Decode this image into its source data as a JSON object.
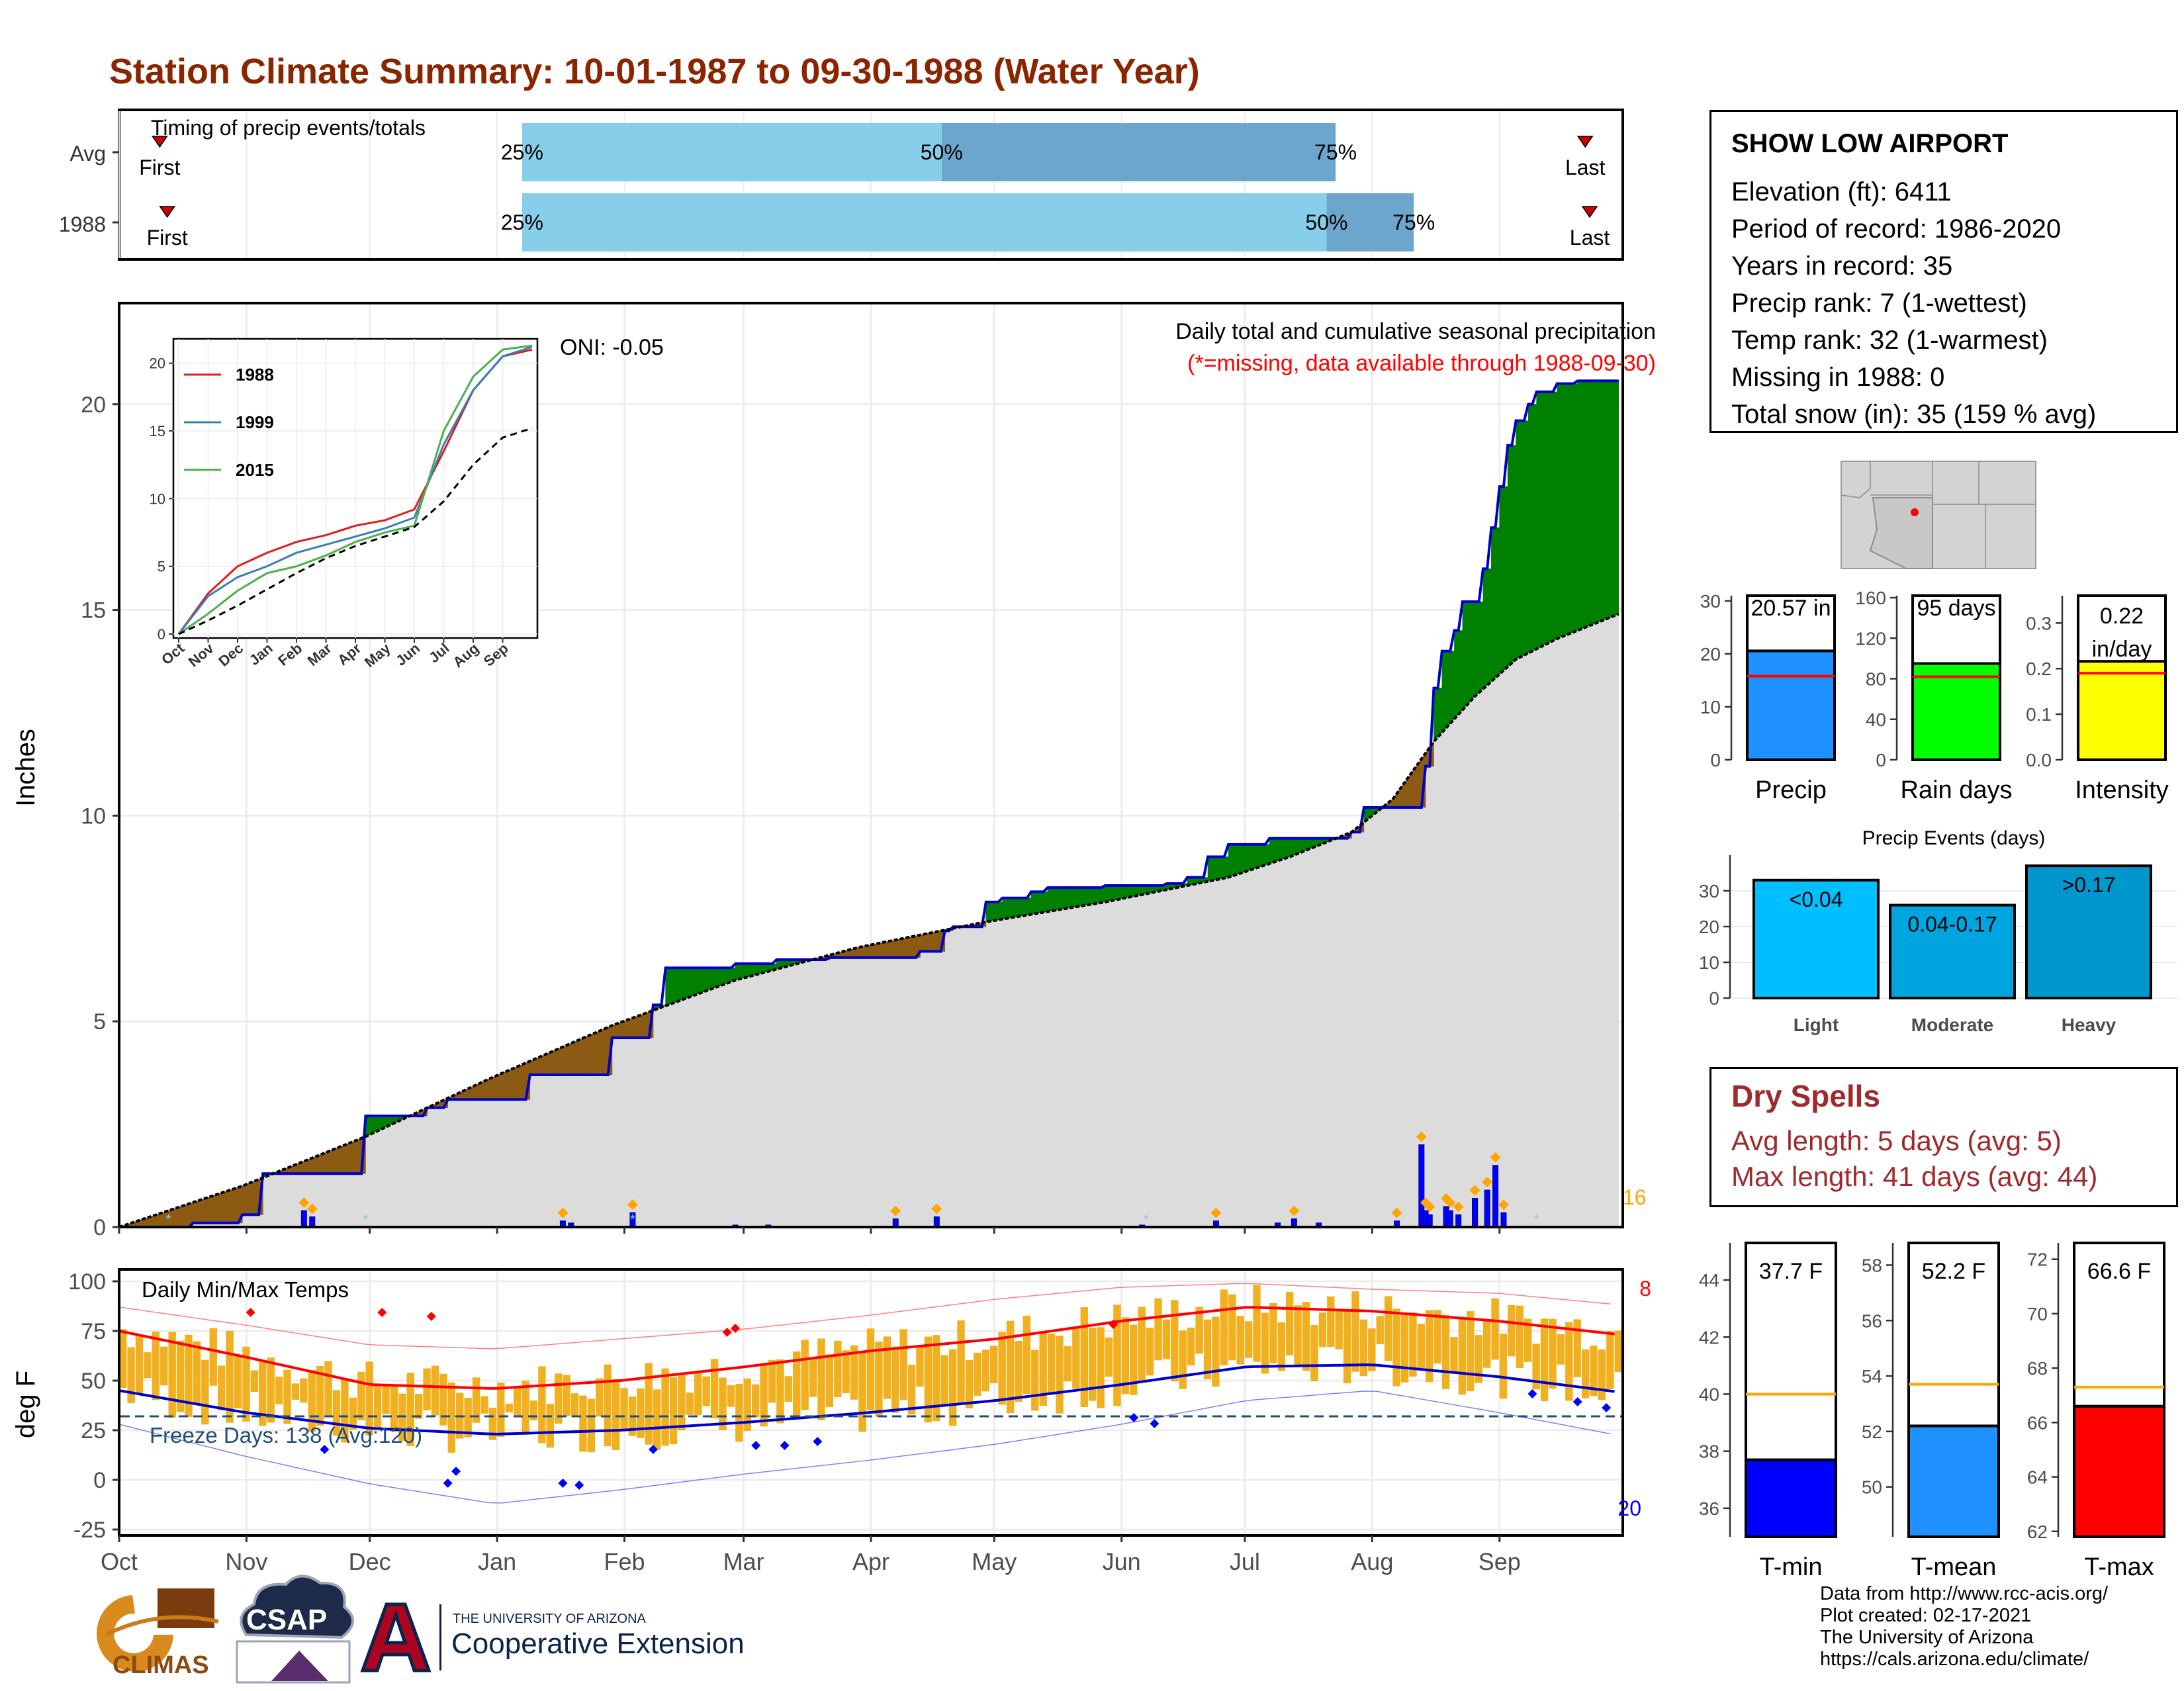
{
  "header": {
    "title": "Station Climate Summary: 10-01-1987 to 09-30-1988 (Water Year)",
    "title_color": "#8b2500"
  },
  "station": {
    "name": "SHOW LOW AIRPORT",
    "lines": [
      "Elevation (ft): 6411",
      "Period of record: 1986-2020",
      "Years in record: 35",
      "Precip rank: 7 (1-wettest)",
      "Temp rank: 32 (1-warmest)",
      "Missing in 1988: 0",
      "Total snow (in): 35 (159 % avg)"
    ]
  },
  "timing": {
    "title": "Timing of precip events/totals",
    "rows": [
      {
        "label": "Avg",
        "first_label": "First",
        "last_label": "Last",
        "first_frac": 0.027,
        "last_frac": 0.975,
        "q25": 0.268,
        "q50": 0.547,
        "q75": 0.809,
        "q25_label": "25%",
        "q50_label": "50%",
        "q75_label": "75%"
      },
      {
        "label": "1988",
        "first_label": "First",
        "last_label": "Last",
        "first_frac": 0.032,
        "last_frac": 0.978,
        "q25": 0.268,
        "q50": 0.803,
        "q75": 0.861,
        "q25_label": "25%",
        "q50_label": "50%",
        "q75_label": "75%"
      }
    ],
    "colors": {
      "light": "#87ceeb",
      "dark": "#6ca6cd",
      "marker": "#cc0000"
    }
  },
  "precip_panel": {
    "ylabel": "Inches",
    "yticks": [
      0,
      5,
      10,
      15,
      20
    ],
    "ylim": [
      0,
      22.2
    ],
    "oni": "ONI: -0.05",
    "caption": "Daily total and cumulative seasonal precipitation",
    "missing_note": "(*=missing, data available through 1988-09-30)",
    "count_label": "16",
    "colors": {
      "above": "#008000",
      "below": "#8b5a13",
      "avg_fill": "#dcdcdc",
      "obs_line": "#0000cd",
      "daily_bar": "#0000ff",
      "diamond": "#ffa500",
      "snow": "#87ceeb"
    }
  },
  "inset": {
    "months": [
      "Oct",
      "Nov",
      "Dec",
      "Jan",
      "Feb",
      "Mar",
      "Apr",
      "May",
      "Jun",
      "Jul",
      "Aug",
      "Sep"
    ],
    "yticks": [
      0,
      5,
      10,
      15,
      20
    ],
    "series": [
      {
        "name": "1988",
        "color": "#e41a1c"
      },
      {
        "name": "1999",
        "color": "#377eb8"
      },
      {
        "name": "2015",
        "color": "#4daf4a"
      }
    ]
  },
  "temp_panel": {
    "ylabel": "deg F",
    "title": "Daily Min/Max Temps",
    "yticks": [
      -25,
      0,
      25,
      50,
      75,
      100
    ],
    "ylim": [
      -28,
      106
    ],
    "freeze_label": "Freeze Days: 138 (Avg:120)",
    "hot_count": "8",
    "cold_count": "20",
    "freeze_line": 32,
    "colors": {
      "bar": "#f0b020",
      "avg_max": "#ff0000",
      "avg_min": "#0000cd",
      "freeze": "#1f4e79"
    }
  },
  "months": [
    "Oct",
    "Nov",
    "Dec",
    "Jan",
    "Feb",
    "Mar",
    "Apr",
    "May",
    "Jun",
    "Jul",
    "Aug",
    "Sep"
  ],
  "stats": [
    {
      "label": "Precip",
      "value_label": "20.57 in",
      "value": 20.57,
      "avg": 15.8,
      "ymax": 31,
      "yticks": [
        0,
        10,
        20,
        30
      ],
      "color": "#1e90ff"
    },
    {
      "label": "Rain days",
      "value_label": "95 days",
      "value": 95,
      "avg": 82,
      "ymax": 162,
      "yticks": [
        0,
        40,
        80,
        120,
        160
      ],
      "color": "#00ff00"
    },
    {
      "label": "Intensity",
      "value_label": "0.22 in/day",
      "value": 0.216,
      "avg": 0.19,
      "ymax": 0.36,
      "yticks": [
        0.0,
        0.1,
        0.2,
        0.3
      ],
      "color": "#ffff00"
    }
  ],
  "events": {
    "title": "Precip Events (days)",
    "categories": [
      "Light",
      "Moderate",
      "Heavy"
    ],
    "bar_labels": [
      "<0.04",
      "0.04-0.17",
      ">0.17"
    ],
    "values": [
      33,
      26,
      37
    ],
    "yticks": [
      0,
      10,
      20,
      30
    ],
    "ymax": 40,
    "colors": [
      "#00bfff",
      "#00a5e0",
      "#0098cc"
    ]
  },
  "dry_spells": {
    "title": "Dry Spells",
    "avg_line": "Avg length: 5 days (avg: 5)",
    "max_line": "Max length: 41 days (avg: 44)"
  },
  "temps": [
    {
      "label": "T-min",
      "value_label": "37.7 F",
      "value": 37.7,
      "avg": 40.0,
      "ymin": 35,
      "ymax": 45.3,
      "yticks": [
        36,
        38,
        40,
        42,
        44
      ],
      "color": "#0000ff"
    },
    {
      "label": "T-mean",
      "value_label": "52.2 F",
      "value": 52.2,
      "avg": 53.7,
      "ymin": 48.2,
      "ymax": 58.8,
      "yticks": [
        50,
        52,
        54,
        56,
        58
      ],
      "color": "#1e90ff"
    },
    {
      "label": "T-max",
      "value_label": "66.6 F",
      "value": 66.6,
      "avg": 67.3,
      "ymin": 61.8,
      "ymax": 72.6,
      "yticks": [
        62,
        64,
        66,
        68,
        70,
        72
      ],
      "color": "#ff0000"
    }
  ],
  "logos": {
    "climas": "CLIMAS",
    "csap": "CSAP",
    "ua_small": "THE UNIVERSITY OF ARIZONA",
    "ua_big": "Cooperative Extension"
  },
  "credits": [
    "Data from http://www.rcc-acis.org/",
    "Plot created: 02-17-2021",
    "The University of Arizona",
    "https://cals.arizona.edu/climate/"
  ],
  "chart_data": [
    {
      "type": "area",
      "title": "Daily total and cumulative seasonal precipitation",
      "ylabel": "Inches",
      "ylim": [
        0,
        22.2
      ],
      "x_unit": "day of water year (0 = Oct 1, 1987)",
      "series": [
        {
          "name": "1988",
          "x": [
            0,
            18,
            30,
            35,
            60,
            75,
            80,
            100,
            120,
            130,
            133,
            150,
            160,
            173,
            195,
            201,
            203,
            211,
            215,
            222,
            226,
            240,
            255,
            260,
            265,
            270,
            280,
            300,
            303,
            318,
            320,
            322,
            325,
            327,
            332,
            334,
            336,
            338,
            340,
            343,
            345,
            350,
            355,
            365
          ],
          "values": [
            0,
            0.1,
            0.3,
            1.3,
            2.7,
            2.9,
            3.1,
            3.7,
            4.6,
            5.4,
            6.3,
            6.4,
            6.5,
            6.55,
            6.7,
            7.2,
            7.3,
            7.9,
            8.0,
            8.15,
            8.25,
            8.3,
            8.35,
            8.5,
            9.0,
            9.3,
            9.45,
            9.6,
            10.2,
            11.2,
            13.1,
            14.0,
            14.5,
            15.2,
            16.0,
            17.0,
            18.0,
            19.0,
            19.6,
            20.0,
            20.3,
            20.5,
            20.57,
            20.57
          ]
        },
        {
          "name": "Avg",
          "x": [
            0,
            30,
            60,
            90,
            120,
            150,
            180,
            210,
            240,
            270,
            285,
            300,
            310,
            320,
            330,
            340,
            350,
            365
          ],
          "values": [
            0,
            1.0,
            2.2,
            3.6,
            4.9,
            6.0,
            6.8,
            7.4,
            7.9,
            8.5,
            9.0,
            9.6,
            10.4,
            11.8,
            12.9,
            13.8,
            14.3,
            14.9
          ]
        }
      ],
      "daily_precip": {
        "x": [
          45,
          47,
          108,
          110,
          125,
          150,
          158,
          189,
          199,
          249,
          267,
          282,
          286,
          292,
          311,
          317,
          318,
          319,
          323,
          324,
          326,
          330,
          333,
          335,
          337
        ],
        "values": [
          0.4,
          0.25,
          0.15,
          0.1,
          0.35,
          0.05,
          0.05,
          0.2,
          0.25,
          0.05,
          0.15,
          0.1,
          0.2,
          0.1,
          0.15,
          2.0,
          0.4,
          0.3,
          0.5,
          0.4,
          0.3,
          0.7,
          0.9,
          1.5,
          0.35
        ]
      }
    },
    {
      "type": "line",
      "title": "",
      "x_unit": "month",
      "series": [
        {
          "name": "1988",
          "x": [
            0,
            1,
            2,
            3,
            4,
            5,
            6,
            7,
            8,
            9,
            10,
            11,
            12
          ],
          "values": [
            0,
            3,
            5,
            6,
            6.8,
            7.3,
            8.0,
            8.4,
            9.2,
            13.5,
            18.0,
            20.5,
            21.0
          ]
        },
        {
          "name": "1999",
          "x": [
            0,
            1,
            2,
            3,
            4,
            5,
            6,
            7,
            8,
            9,
            10,
            11,
            12
          ],
          "values": [
            0,
            2.8,
            4.2,
            5.0,
            6.0,
            6.6,
            7.2,
            7.8,
            8.6,
            14.0,
            18.0,
            20.5,
            21.2
          ]
        },
        {
          "name": "2015",
          "x": [
            0,
            1,
            2,
            3,
            4,
            5,
            6,
            7,
            8,
            9,
            10,
            11,
            12
          ],
          "values": [
            0,
            1.5,
            3.2,
            4.5,
            5.0,
            5.8,
            6.8,
            7.5,
            8.0,
            15.0,
            19.0,
            21.0,
            21.3
          ]
        },
        {
          "name": "Avg",
          "x": [
            0,
            1,
            2,
            3,
            4,
            5,
            6,
            7,
            8,
            9,
            10,
            11,
            12
          ],
          "values": [
            0,
            1.0,
            2.1,
            3.3,
            4.5,
            5.6,
            6.5,
            7.2,
            7.9,
            9.8,
            12.5,
            14.5,
            15.2
          ]
        }
      ]
    },
    {
      "type": "bar",
      "title": "Daily Min/Max Temps",
      "ylabel": "deg F",
      "ylim": [
        -28,
        106
      ],
      "x_unit": "month",
      "series": [
        {
          "name": "avg_max",
          "x": [
            0,
            1,
            2,
            3,
            4,
            5,
            6,
            7,
            8,
            9,
            10,
            11,
            12
          ],
          "values": [
            75,
            62,
            48,
            46,
            50,
            57,
            65,
            71,
            80,
            87,
            85,
            80,
            73
          ]
        },
        {
          "name": "avg_min",
          "x": [
            0,
            1,
            2,
            3,
            4,
            5,
            6,
            7,
            8,
            9,
            10,
            11,
            12
          ],
          "values": [
            45,
            34,
            26,
            23,
            25,
            29,
            34,
            40,
            48,
            57,
            58,
            52,
            44
          ]
        },
        {
          "name": "record_max",
          "x": [
            0,
            1,
            2,
            3,
            4,
            5,
            6,
            7,
            8,
            9,
            10,
            11,
            12
          ],
          "values": [
            87,
            78,
            68,
            66,
            71,
            76,
            83,
            91,
            97,
            99,
            96,
            94,
            88
          ]
        },
        {
          "name": "record_min",
          "x": [
            0,
            1,
            2,
            3,
            4,
            5,
            6,
            7,
            8,
            9,
            10,
            11,
            12
          ],
          "values": [
            28,
            12,
            -2,
            -12,
            -5,
            3,
            10,
            18,
            28,
            40,
            45,
            34,
            22
          ]
        }
      ]
    },
    {
      "type": "bar",
      "title": "",
      "categories": [
        "Precip",
        "Rain days",
        "Intensity"
      ],
      "values": [
        20.57,
        95,
        0.22
      ],
      "avg": [
        15.8,
        82,
        0.19
      ]
    },
    {
      "type": "bar",
      "title": "Precip Events (days)",
      "categories": [
        "Light",
        "Moderate",
        "Heavy"
      ],
      "values": [
        33,
        26,
        37
      ]
    },
    {
      "type": "bar",
      "title": "",
      "categories": [
        "T-min",
        "T-mean",
        "T-max"
      ],
      "values": [
        37.7,
        52.2,
        66.6
      ],
      "avg": [
        40.0,
        53.7,
        67.3
      ]
    }
  ]
}
